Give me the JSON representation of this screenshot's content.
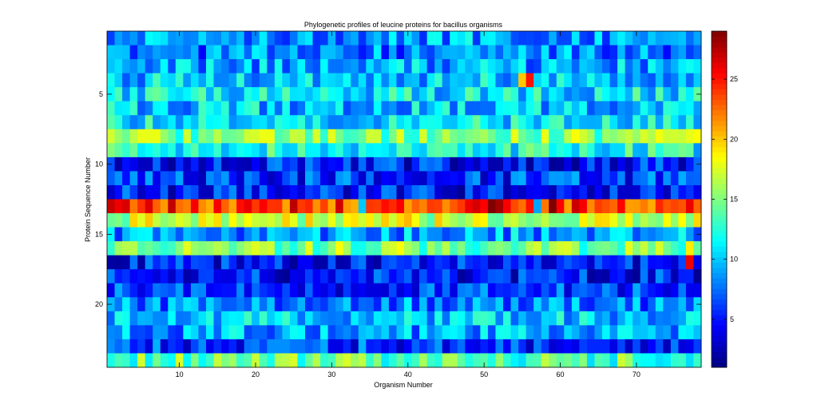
{
  "chart_data": {
    "type": "heatmap",
    "title": "Phylogenetic profiles of leucine proteins for bacillus organisms",
    "xlabel": "Organism Number",
    "ylabel": "Protein Sequence Number",
    "n_cols": 78,
    "n_rows": 24,
    "xlim": [
      0.5,
      78.5
    ],
    "ylim": [
      0.5,
      24.5
    ],
    "x_ticks": [
      10,
      20,
      30,
      40,
      50,
      60,
      70
    ],
    "y_ticks": [
      5,
      10,
      15,
      20
    ],
    "colorbar": {
      "min": 1,
      "max": 29,
      "ticks": [
        5,
        10,
        15,
        20,
        25
      ],
      "colormap": "jet"
    },
    "row_base_values": [
      9,
      8,
      9,
      10,
      11,
      10,
      11,
      15,
      12,
      5,
      6,
      5,
      24,
      17,
      9,
      15,
      5,
      5,
      6,
      8,
      10,
      9,
      6,
      14
    ],
    "cell_noise_amplitude": 3.5,
    "notable_cells": [
      {
        "row": 4,
        "col": 56,
        "value": 25
      },
      {
        "row": 4,
        "col": 55,
        "value": 20
      },
      {
        "row": 17,
        "col": 77,
        "value": 26
      },
      {
        "row": 16,
        "col": 77,
        "value": 19
      },
      {
        "row": 13,
        "col": 51,
        "value": 29
      },
      {
        "row": 13,
        "col": 52,
        "value": 28
      },
      {
        "row": 13,
        "col": 34,
        "value": 10
      },
      {
        "row": 13,
        "col": 57,
        "value": 9
      },
      {
        "row": 13,
        "col": 59,
        "value": 29
      }
    ]
  }
}
